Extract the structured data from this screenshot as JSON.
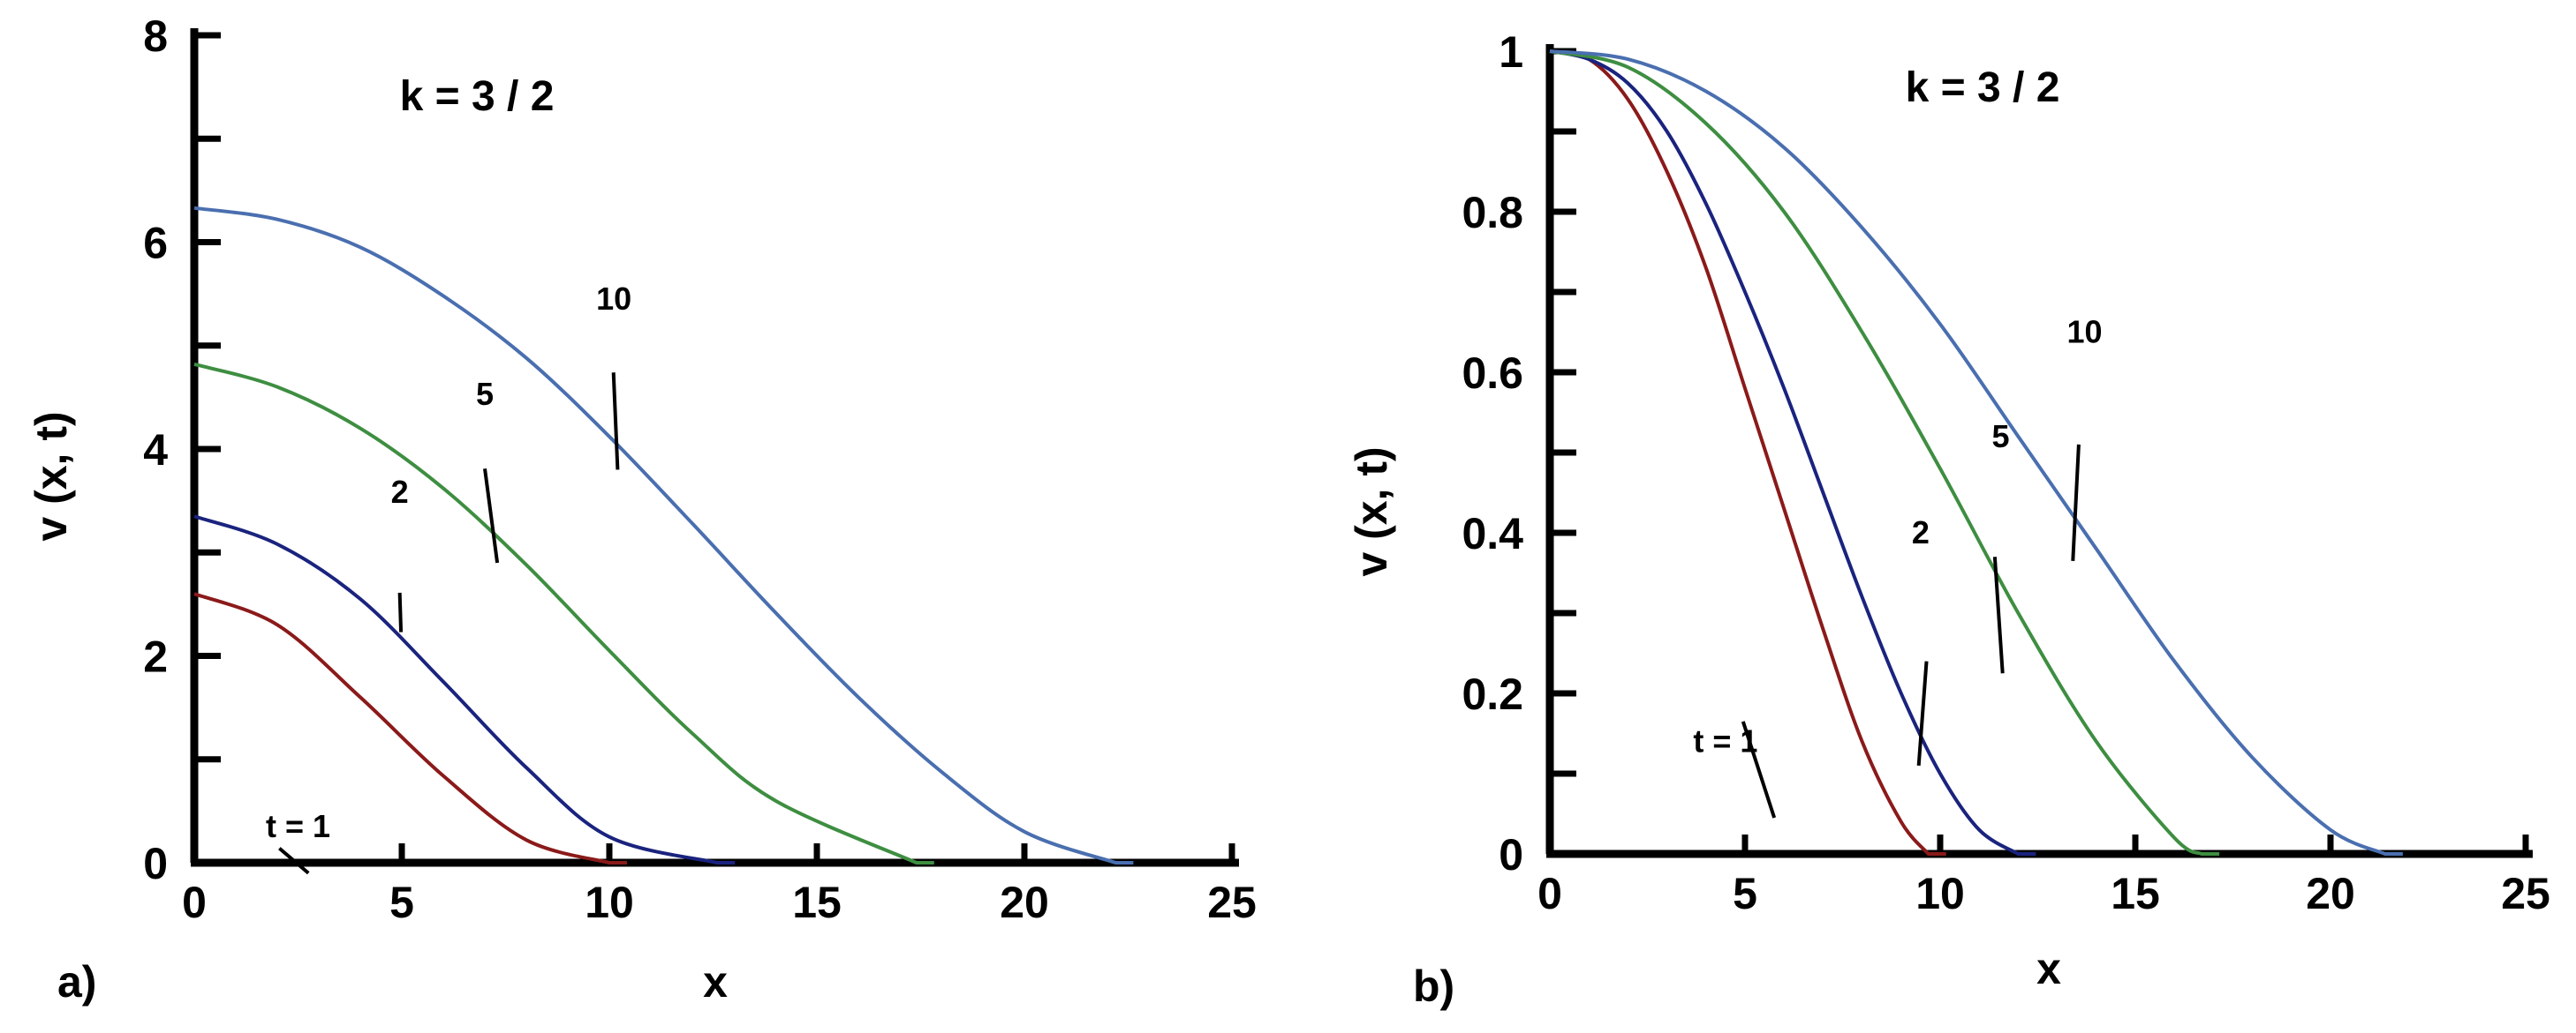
{
  "chart_data": [
    {
      "panel_label": "a)",
      "type": "line",
      "annotation": "k = 3 / 2",
      "xlabel": "x",
      "ylabel": "v (x, t)",
      "xlim": [
        0,
        25
      ],
      "ylim": [
        0,
        8
      ],
      "x_ticks": [
        "0",
        "5",
        "10",
        "15",
        "20",
        "25"
      ],
      "y_ticks": [
        "0",
        "2",
        "4",
        "6",
        "8"
      ],
      "series": [
        {
          "name": "t = 1",
          "color": "#8b1a1a",
          "x": [
            0,
            2,
            4,
            6,
            8,
            10
          ],
          "y": [
            2.6,
            2.3,
            1.6,
            0.84,
            0.22,
            0
          ]
        },
        {
          "name": "2",
          "color": "#1a237e",
          "x": [
            0,
            2,
            4,
            6,
            8,
            10,
            12.6
          ],
          "y": [
            3.35,
            3.08,
            2.55,
            1.75,
            0.92,
            0.25,
            0
          ]
        },
        {
          "name": "5",
          "color": "#3e8e41",
          "x": [
            0,
            2,
            4,
            6,
            8,
            10,
            12,
            14,
            17.4
          ],
          "y": [
            4.82,
            4.6,
            4.2,
            3.62,
            2.88,
            2.05,
            1.25,
            0.6,
            0
          ]
        },
        {
          "name": "10",
          "color": "#4a6fb0",
          "x": [
            0,
            2,
            4,
            6,
            8,
            10,
            12,
            14,
            16,
            18,
            20,
            22.2
          ],
          "y": [
            6.33,
            6.22,
            5.95,
            5.48,
            4.88,
            4.12,
            3.28,
            2.42,
            1.6,
            0.88,
            0.3,
            0
          ]
        }
      ],
      "curve_labels": [
        {
          "text": "t = 1",
          "x": 2.5,
          "y": 0.85
        },
        {
          "text": "2",
          "x": 4.95,
          "y": 3.1
        },
        {
          "text": "5",
          "x": 7.0,
          "y": 4.05
        },
        {
          "text": "10",
          "x": 10.1,
          "y": 5.0
        }
      ]
    },
    {
      "panel_label": "b)",
      "type": "line",
      "annotation": "k = 3 / 2",
      "xlabel": "x",
      "ylabel": "v (x, t)",
      "xlim": [
        0,
        25
      ],
      "ylim": [
        0,
        1
      ],
      "x_ticks": [
        "0",
        "5",
        "10",
        "15",
        "20",
        "25"
      ],
      "y_ticks": [
        "0",
        "0.2",
        "0.4",
        "0.6",
        "0.8",
        "1"
      ],
      "series": [
        {
          "name": "t = 1",
          "color": "#8b1a1a",
          "x": [
            0,
            1,
            2,
            3,
            4,
            5,
            6,
            7,
            8,
            9,
            9.7
          ],
          "y": [
            1,
            0.99,
            0.94,
            0.85,
            0.73,
            0.58,
            0.43,
            0.28,
            0.14,
            0.04,
            0
          ]
        },
        {
          "name": "2",
          "color": "#1a237e",
          "x": [
            0,
            1,
            2,
            3,
            4,
            5,
            6,
            7,
            8,
            9,
            10,
            11,
            12
          ],
          "y": [
            1,
            0.99,
            0.96,
            0.9,
            0.81,
            0.7,
            0.58,
            0.45,
            0.32,
            0.2,
            0.1,
            0.03,
            0
          ]
        },
        {
          "name": "5",
          "color": "#3e8e41",
          "x": [
            0,
            2,
            4,
            6,
            8,
            10,
            12,
            14,
            16,
            16.7
          ],
          "y": [
            1,
            0.98,
            0.91,
            0.8,
            0.65,
            0.48,
            0.3,
            0.14,
            0.02,
            0
          ]
        },
        {
          "name": "10",
          "color": "#4a6fb0",
          "x": [
            0,
            2,
            4,
            6,
            8,
            10,
            12,
            14,
            16,
            18,
            20,
            21.4
          ],
          "y": [
            1,
            0.99,
            0.95,
            0.88,
            0.78,
            0.66,
            0.52,
            0.38,
            0.24,
            0.12,
            0.03,
            0
          ]
        }
      ],
      "curve_labels": [
        {
          "text": "t = 1",
          "x": 4.6,
          "y": 0.2
        },
        {
          "text": "2",
          "x": 9.45,
          "y": 0.27
        },
        {
          "text": "5",
          "x": 11.4,
          "y": 0.39
        },
        {
          "text": "10",
          "x": 13.4,
          "y": 0.53
        }
      ]
    }
  ]
}
